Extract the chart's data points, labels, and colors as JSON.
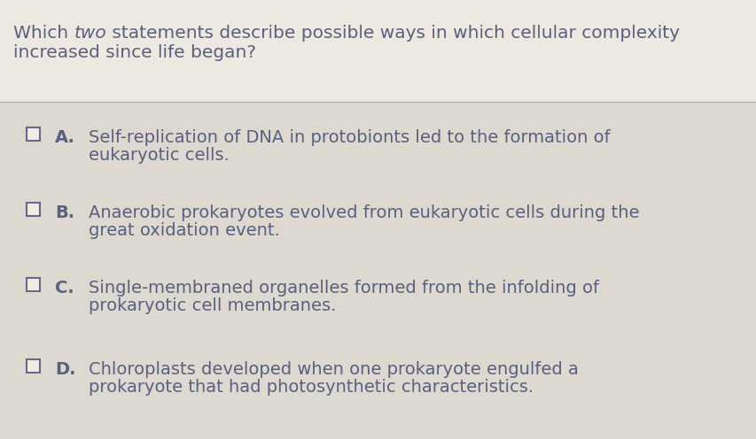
{
  "bg_top": "#ede8e0",
  "bg_bottom": "#ddd8d0",
  "text_color": "#5a6080",
  "separator_color": "#b8b4ac",
  "checkbox_color": "#6a6888",
  "question_fs": 14.5,
  "option_fs": 14.0,
  "label_fs": 14.0,
  "q_line1_pre": "Which ",
  "q_line1_italic": "two",
  "q_line1_post": " statements describe possible ways in which cellular complexity",
  "q_line2": "increased since life began?",
  "options": [
    {
      "label": "A.",
      "line1": "Self-replication of DNA in protobionts led to the formation of",
      "line2": "eukaryotic cells."
    },
    {
      "label": "B.",
      "line1": "Anaerobic prokaryotes evolved from eukaryotic cells during the",
      "line2": "great oxidation event."
    },
    {
      "label": "C.",
      "line1": "Single-membraned organelles formed from the infolding of",
      "line2": "prokaryotic cell membranes."
    },
    {
      "label": "D.",
      "line1": "Chloroplasts developed when one prokaryote engulfed a",
      "line2": "prokaryote that had photosynthetic characteristics."
    }
  ]
}
